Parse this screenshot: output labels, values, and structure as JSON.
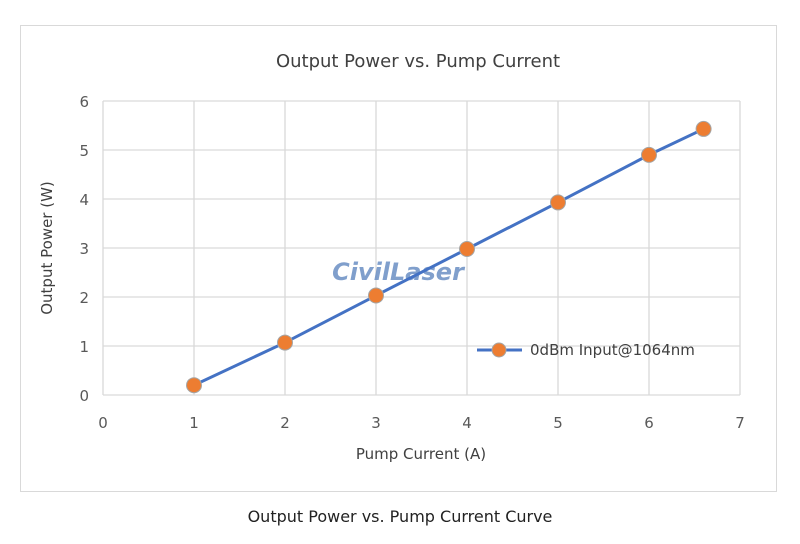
{
  "caption": "Output Power vs. Pump Current Curve",
  "watermark": "CivilLaser",
  "colors": {
    "line": "#4472c4",
    "marker": "#ed7d31",
    "marker_edge": "#a5a5a5",
    "grid": "#d9d9d9"
  },
  "chart_data": {
    "type": "line",
    "title": "Output Power vs. Pump Current",
    "xlabel": "Pump Current (A)",
    "ylabel": "Output Power (W)",
    "xlim": [
      0,
      7
    ],
    "ylim": [
      0,
      6
    ],
    "x_ticks": [
      "0",
      "1",
      "2",
      "3",
      "4",
      "5",
      "6",
      "7"
    ],
    "y_ticks": [
      "0",
      "1",
      "2",
      "3",
      "4",
      "5",
      "6"
    ],
    "grid": true,
    "legend_position": "lower-right",
    "series": [
      {
        "name": "0dBm Input@1064nm",
        "x": [
          1,
          2,
          3,
          4,
          5,
          6,
          6.6
        ],
        "y": [
          0.2,
          1.07,
          2.03,
          2.98,
          3.93,
          4.9,
          5.43
        ]
      }
    ]
  }
}
